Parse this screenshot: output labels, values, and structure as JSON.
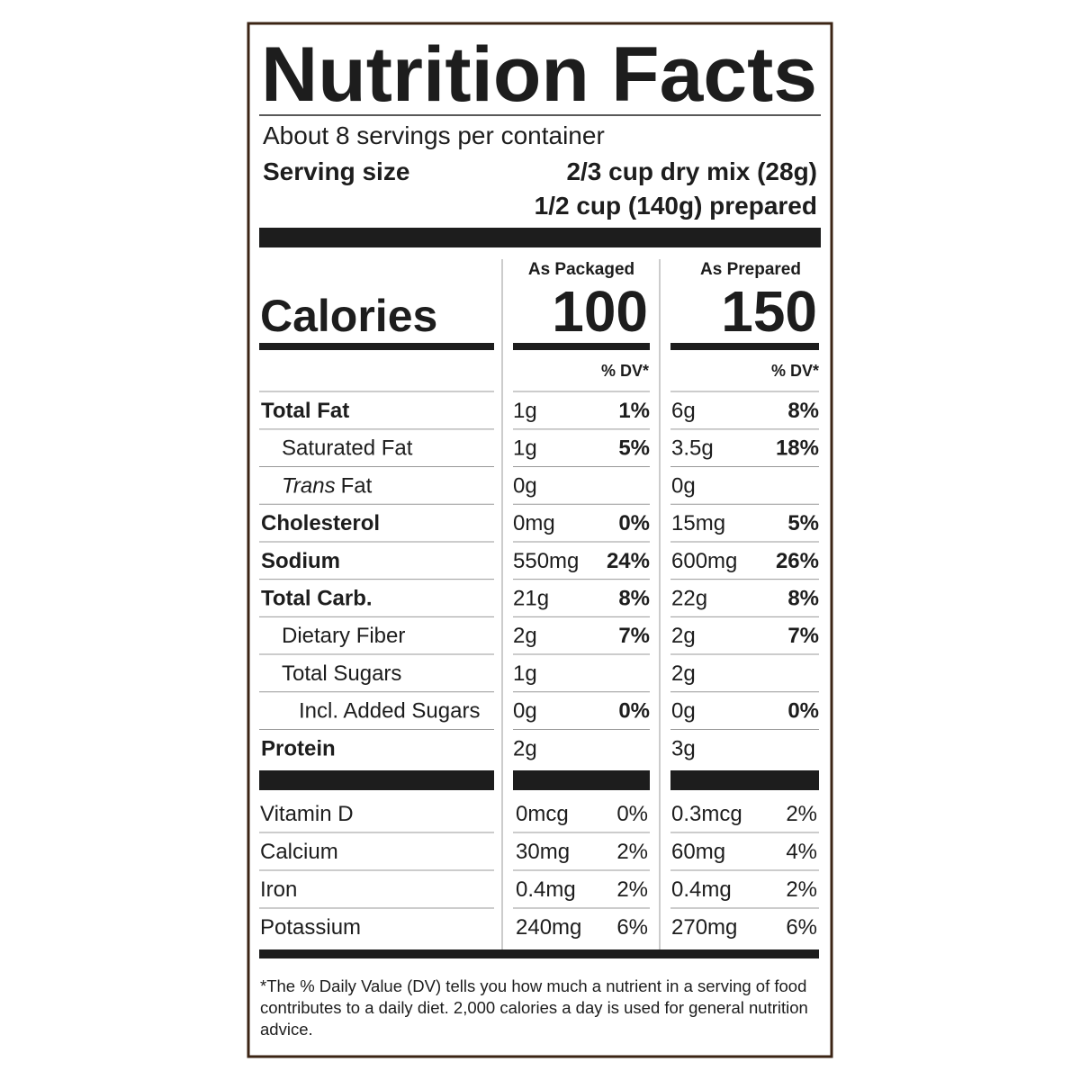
{
  "title": "Nutrition Facts",
  "servings": "About 8 servings per container",
  "serving_size": {
    "label": "Serving size",
    "values": [
      "2/3 cup dry mix (28g)",
      "1/2 cup (140g) prepared"
    ]
  },
  "columns": [
    "As Packaged",
    "As Prepared"
  ],
  "calories": {
    "label": "Calories",
    "values": [
      "100",
      "150"
    ]
  },
  "dv_headers": [
    "% DV*",
    "% DV*"
  ],
  "nutrients": [
    {
      "name": "Total Fat",
      "packaged": {
        "amount": "1g",
        "dv": "1%"
      },
      "prepared": {
        "amount": "6g",
        "dv": "8%"
      }
    },
    {
      "name": "Saturated Fat",
      "packaged": {
        "amount": "1g",
        "dv": "5%"
      },
      "prepared": {
        "amount": "3.5g",
        "dv": "18%"
      }
    },
    {
      "name_italic": "Trans",
      "name": "Fat",
      "packaged": {
        "amount": "0g"
      },
      "prepared": {
        "amount": "0g"
      }
    },
    {
      "name": "Cholesterol",
      "packaged": {
        "amount": "0mg",
        "dv": "0%"
      },
      "prepared": {
        "amount": "15mg",
        "dv": "5%"
      }
    },
    {
      "name": "Sodium",
      "packaged": {
        "amount": "550mg",
        "dv": "24%"
      },
      "prepared": {
        "amount": "600mg",
        "dv": "26%"
      }
    },
    {
      "name": "Total Carb.",
      "packaged": {
        "amount": "21g",
        "dv": "8%"
      },
      "prepared": {
        "amount": "22g",
        "dv": "8%"
      }
    },
    {
      "name": "Dietary Fiber",
      "packaged": {
        "amount": "2g",
        "dv": "7%"
      },
      "prepared": {
        "amount": "2g",
        "dv": "7%"
      }
    },
    {
      "name": "Total Sugars",
      "packaged": {
        "amount": "1g"
      },
      "prepared": {
        "amount": "2g"
      }
    },
    {
      "name": "Incl. Added Sugars",
      "packaged": {
        "amount": "0g",
        "dv": "0%"
      },
      "prepared": {
        "amount": "0g",
        "dv": "0%"
      }
    },
    {
      "name": "Protein",
      "packaged": {
        "amount": "2g"
      },
      "prepared": {
        "amount": "3g"
      }
    }
  ],
  "vitamins": [
    {
      "name": "Vitamin D",
      "packaged": {
        "amount": "0mcg",
        "dv": "0%"
      },
      "prepared": {
        "amount": "0.3mcg",
        "dv": "2%"
      }
    },
    {
      "name": "Calcium",
      "packaged": {
        "amount": "30mg",
        "dv": "2%"
      },
      "prepared": {
        "amount": "60mg",
        "dv": "4%"
      }
    },
    {
      "name": "Iron",
      "packaged": {
        "amount": "0.4mg",
        "dv": "2%"
      },
      "prepared": {
        "amount": "0.4mg",
        "dv": "2%"
      }
    },
    {
      "name": "Potassium",
      "packaged": {
        "amount": "240mg",
        "dv": "6%"
      },
      "prepared": {
        "amount": "270mg",
        "dv": "6%"
      }
    }
  ],
  "footnote": "*The % Daily Value (DV) tells you how much a nutrient in a serving of food contributes to a daily diet. 2,000 calories a day is used for general nutrition advice."
}
